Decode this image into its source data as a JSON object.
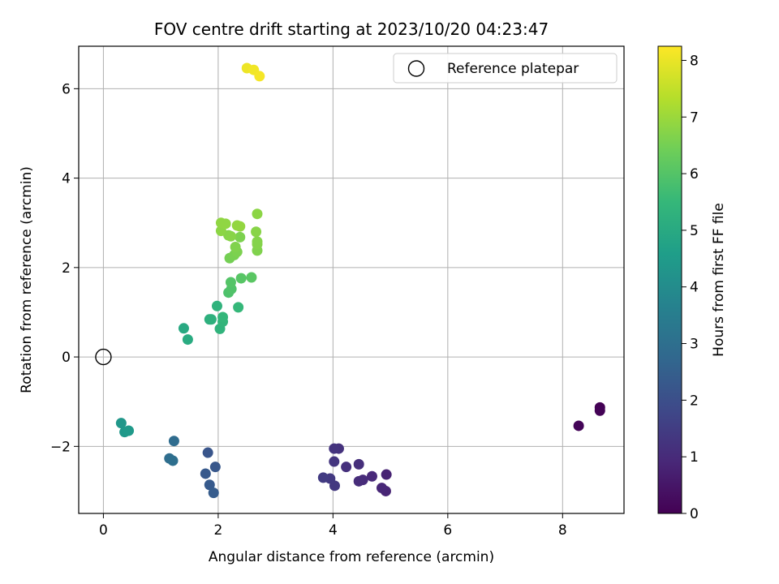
{
  "chart_data": {
    "type": "scatter",
    "title": "FOV centre drift starting at 2023/10/20 04:23:47",
    "xlabel": "Angular distance from reference (arcmin)",
    "ylabel": "Rotation from reference (arcmin)",
    "xlim": [
      -0.43,
      9.07
    ],
    "ylim": [
      -3.5,
      6.95
    ],
    "xticks": [
      0,
      2,
      4,
      6,
      8
    ],
    "yticks": [
      -2,
      0,
      2,
      4,
      6
    ],
    "xtick_labels": [
      "0",
      "2",
      "4",
      "6",
      "8"
    ],
    "ytick_labels": [
      "−2",
      "0",
      "2",
      "4",
      "6"
    ],
    "grid": true,
    "legend": {
      "placement": "top-right",
      "entries": [
        {
          "label": "Reference platepar",
          "marker": "open-circle"
        }
      ]
    },
    "reference": {
      "x": 0,
      "y": 0
    },
    "colorbar": {
      "label": "Hours from first FF file",
      "min": 0,
      "max": 8.25,
      "ticks": [
        0,
        1,
        2,
        3,
        4,
        5,
        6,
        7,
        8
      ],
      "colormap": "viridis",
      "colormap_stops": [
        "#440154",
        "#482878",
        "#3e4989",
        "#31688e",
        "#26828e",
        "#1f9e89",
        "#35b779",
        "#6ece58",
        "#b5de2b",
        "#fde725"
      ]
    },
    "points": [
      {
        "x": 8.65,
        "y": -1.13,
        "h": 0.0
      },
      {
        "x": 8.65,
        "y": -1.2,
        "h": 0.05
      },
      {
        "x": 8.28,
        "y": -1.54,
        "h": 0.1
      },
      {
        "x": 4.93,
        "y": -2.63,
        "h": 0.8
      },
      {
        "x": 4.92,
        "y": -3.0,
        "h": 0.85
      },
      {
        "x": 4.85,
        "y": -2.93,
        "h": 0.9
      },
      {
        "x": 4.68,
        "y": -2.67,
        "h": 0.95
      },
      {
        "x": 4.52,
        "y": -2.75,
        "h": 1.0
      },
      {
        "x": 4.45,
        "y": -2.78,
        "h": 1.05
      },
      {
        "x": 4.45,
        "y": -2.4,
        "h": 1.1
      },
      {
        "x": 4.23,
        "y": -2.46,
        "h": 1.15
      },
      {
        "x": 4.1,
        "y": -2.05,
        "h": 1.2
      },
      {
        "x": 4.02,
        "y": -2.05,
        "h": 1.25
      },
      {
        "x": 4.02,
        "y": -2.34,
        "h": 1.3
      },
      {
        "x": 4.03,
        "y": -2.88,
        "h": 1.35
      },
      {
        "x": 3.95,
        "y": -2.72,
        "h": 1.4
      },
      {
        "x": 3.83,
        "y": -2.7,
        "h": 1.45
      },
      {
        "x": 1.82,
        "y": -2.14,
        "h": 2.2
      },
      {
        "x": 1.95,
        "y": -2.46,
        "h": 2.25
      },
      {
        "x": 1.78,
        "y": -2.61,
        "h": 2.3
      },
      {
        "x": 1.85,
        "y": -2.86,
        "h": 2.35
      },
      {
        "x": 1.92,
        "y": -3.04,
        "h": 2.4
      },
      {
        "x": 1.23,
        "y": -1.88,
        "h": 2.9
      },
      {
        "x": 1.15,
        "y": -2.27,
        "h": 2.95
      },
      {
        "x": 1.21,
        "y": -2.32,
        "h": 3.0
      },
      {
        "x": 0.31,
        "y": -1.48,
        "h": 4.35
      },
      {
        "x": 0.37,
        "y": -1.68,
        "h": 4.4
      },
      {
        "x": 0.44,
        "y": -1.65,
        "h": 4.45
      },
      {
        "x": 1.4,
        "y": 0.64,
        "h": 5.0
      },
      {
        "x": 1.47,
        "y": 0.39,
        "h": 5.05
      },
      {
        "x": 1.85,
        "y": 0.84,
        "h": 5.2
      },
      {
        "x": 1.88,
        "y": 0.84,
        "h": 5.25
      },
      {
        "x": 1.98,
        "y": 1.14,
        "h": 5.3
      },
      {
        "x": 2.03,
        "y": 0.63,
        "h": 5.35
      },
      {
        "x": 2.08,
        "y": 0.79,
        "h": 5.4
      },
      {
        "x": 2.08,
        "y": 0.89,
        "h": 5.45
      },
      {
        "x": 2.35,
        "y": 1.11,
        "h": 5.5
      },
      {
        "x": 2.18,
        "y": 1.44,
        "h": 5.9
      },
      {
        "x": 2.23,
        "y": 1.52,
        "h": 5.95
      },
      {
        "x": 2.22,
        "y": 1.67,
        "h": 6.0
      },
      {
        "x": 2.4,
        "y": 1.76,
        "h": 6.05
      },
      {
        "x": 2.58,
        "y": 1.78,
        "h": 6.1
      },
      {
        "x": 2.2,
        "y": 2.21,
        "h": 6.5
      },
      {
        "x": 2.28,
        "y": 2.28,
        "h": 6.55
      },
      {
        "x": 2.33,
        "y": 2.35,
        "h": 6.6
      },
      {
        "x": 2.3,
        "y": 2.46,
        "h": 6.65
      },
      {
        "x": 2.38,
        "y": 2.68,
        "h": 6.6
      },
      {
        "x": 2.68,
        "y": 2.38,
        "h": 6.65
      },
      {
        "x": 2.68,
        "y": 2.52,
        "h": 6.7
      },
      {
        "x": 2.68,
        "y": 2.58,
        "h": 6.7
      },
      {
        "x": 2.66,
        "y": 2.8,
        "h": 6.75
      },
      {
        "x": 2.68,
        "y": 3.2,
        "h": 6.8
      },
      {
        "x": 2.18,
        "y": 2.72,
        "h": 6.7
      },
      {
        "x": 2.22,
        "y": 2.7,
        "h": 6.75
      },
      {
        "x": 2.05,
        "y": 2.82,
        "h": 6.8
      },
      {
        "x": 2.05,
        "y": 3.0,
        "h": 6.85
      },
      {
        "x": 2.13,
        "y": 2.98,
        "h": 6.85
      },
      {
        "x": 2.33,
        "y": 2.94,
        "h": 6.9
      },
      {
        "x": 2.38,
        "y": 2.92,
        "h": 6.9
      },
      {
        "x": 2.5,
        "y": 6.46,
        "h": 8.05
      },
      {
        "x": 2.62,
        "y": 6.42,
        "h": 8.1
      },
      {
        "x": 2.72,
        "y": 6.28,
        "h": 8.15
      }
    ]
  }
}
